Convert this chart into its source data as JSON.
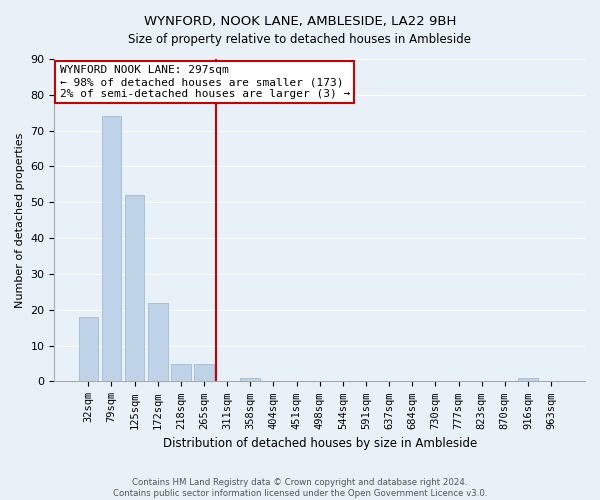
{
  "title": "WYNFORD, NOOK LANE, AMBLESIDE, LA22 9BH",
  "subtitle": "Size of property relative to detached houses in Ambleside",
  "xlabel": "Distribution of detached houses by size in Ambleside",
  "ylabel": "Number of detached properties",
  "bin_labels": [
    "32sqm",
    "79sqm",
    "125sqm",
    "172sqm",
    "218sqm",
    "265sqm",
    "311sqm",
    "358sqm",
    "404sqm",
    "451sqm",
    "498sqm",
    "544sqm",
    "591sqm",
    "637sqm",
    "684sqm",
    "730sqm",
    "777sqm",
    "823sqm",
    "870sqm",
    "916sqm",
    "963sqm"
  ],
  "bar_values": [
    18,
    74,
    52,
    22,
    5,
    5,
    0,
    1,
    0,
    0,
    0,
    0,
    0,
    0,
    0,
    0,
    0,
    0,
    0,
    1,
    0
  ],
  "bar_color": "#bed3e8",
  "bar_edge_color": "#9ab5cc",
  "vline_x": 5.5,
  "vline_color": "#cc0000",
  "annotation_title": "WYNFORD NOOK LANE: 297sqm",
  "annotation_line1": "← 98% of detached houses are smaller (173)",
  "annotation_line2": "2% of semi-detached houses are larger (3) →",
  "ylim": [
    0,
    90
  ],
  "yticks": [
    0,
    10,
    20,
    30,
    40,
    50,
    60,
    70,
    80,
    90
  ],
  "footer1": "Contains HM Land Registry data © Crown copyright and database right 2024.",
  "footer2": "Contains public sector information licensed under the Open Government Licence v3.0.",
  "bg_color": "#e8f0f8",
  "grid_color": "#ffffff",
  "title_fontsize": 9.5,
  "subtitle_fontsize": 8.5,
  "tick_fontsize": 7.5,
  "ylabel_fontsize": 8,
  "xlabel_fontsize": 8.5,
  "ann_fontsize": 8
}
